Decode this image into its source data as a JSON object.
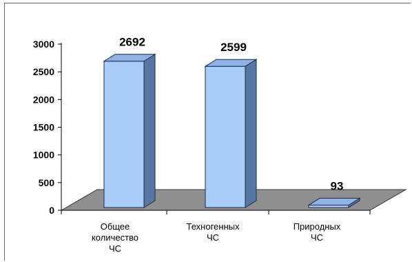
{
  "chart_data": {
    "type": "bar",
    "style": "3d-column",
    "categories": [
      [
        "Общее",
        "количество",
        "ЧС"
      ],
      [
        "Техногенных",
        "ЧС"
      ],
      [
        "Природных",
        "ЧС"
      ]
    ],
    "values": [
      2692,
      2599,
      93
    ],
    "data_labels": [
      "2692",
      "2599",
      "93"
    ],
    "yticks": [
      0,
      500,
      1000,
      1500,
      2000,
      2500,
      3000
    ],
    "ylim": [
      0,
      3000
    ],
    "title": "",
    "xlabel": "",
    "ylabel": "",
    "grid": false,
    "legend": "none",
    "colors": {
      "bar_front": "#a9cdf8",
      "bar_side": "#5876a3",
      "bar_top": "#8eb2e6",
      "bar_edge": "#1f2b45",
      "floor": "#8f8f8f",
      "floor_edge": "#333333"
    }
  }
}
